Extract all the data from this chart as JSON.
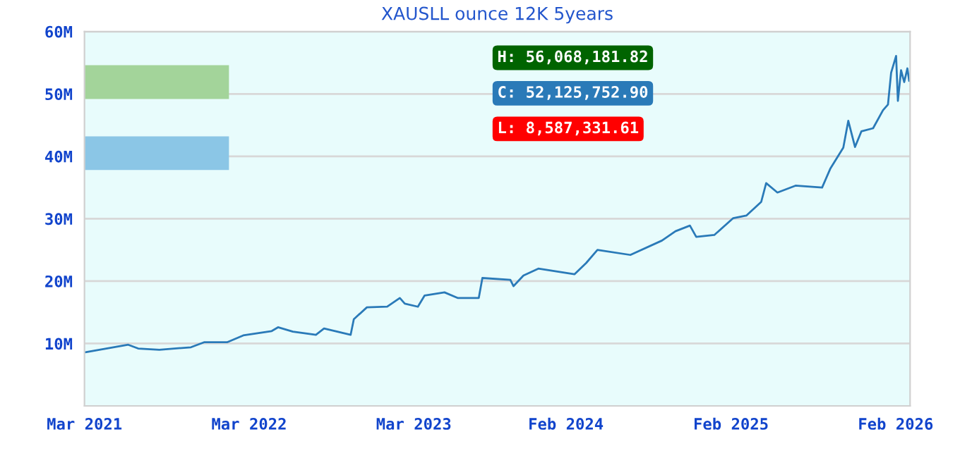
{
  "chart_data": {
    "type": "line",
    "title": "XAUSLL ounce 12K 5years",
    "annotations": [
      "H: 56,068,181.82",
      "C: 52,125,752.90",
      "L: 8,587,331.61"
    ],
    "grid": "y",
    "legend": false,
    "marker": "none",
    "line_style": "solid",
    "xlim": [
      "2021-03-01",
      "2026-03-05"
    ],
    "xticks": [
      {
        "value": "2021-03-01",
        "label": "Mar 2021"
      },
      {
        "value": "2022-03-01",
        "label": "Mar 2022"
      },
      {
        "value": "2023-03-01",
        "label": "Mar 2023"
      },
      {
        "value": "2024-02-01",
        "label": "Feb 2024"
      },
      {
        "value": "2025-02-01",
        "label": "Feb 2025"
      },
      {
        "value": "2026-02-01",
        "label": "Feb 2026"
      }
    ],
    "ylim": [
      0,
      60000000
    ],
    "yticks": [
      {
        "value": 10000000,
        "label": "10M"
      },
      {
        "value": 20000000,
        "label": "20M"
      },
      {
        "value": 30000000,
        "label": "30M"
      },
      {
        "value": 40000000,
        "label": "40M"
      },
      {
        "value": 50000000,
        "label": "50M"
      },
      {
        "value": 60000000,
        "label": "60M"
      }
    ],
    "series": [
      {
        "color": "#2a7ab8",
        "x": [
          "2021-03-03",
          "2021-06-06",
          "2021-06-28",
          "2021-08-14",
          "2021-10-23",
          "2021-11-21",
          "2022-01-11",
          "2022-02-16",
          "2022-04-20",
          "2022-05-04",
          "2022-06-06",
          "2022-07-27",
          "2022-08-14",
          "2022-10-12",
          "2022-10-19",
          "2022-11-17",
          "2023-01-01",
          "2023-01-29",
          "2023-02-09",
          "2023-03-10",
          "2023-03-25",
          "2023-05-08",
          "2023-06-06",
          "2023-07-23",
          "2023-07-31",
          "2023-10-01",
          "2023-10-08",
          "2023-10-30",
          "2023-12-02",
          "2024-02-20",
          "2024-03-17",
          "2024-04-11",
          "2024-06-23",
          "2024-09-01",
          "2024-10-01",
          "2024-11-02",
          "2024-11-16",
          "2024-12-26",
          "2025-02-06",
          "2025-03-07",
          "2025-04-09",
          "2025-04-20",
          "2025-05-15",
          "2025-06-24",
          "2025-08-22",
          "2025-09-09",
          "2025-10-08",
          "2025-10-19",
          "2025-11-03",
          "2025-11-17",
          "2025-12-13",
          "2026-01-04",
          "2026-01-15",
          "2026-01-22",
          "2026-02-02",
          "2026-02-06",
          "2026-02-13",
          "2026-02-20",
          "2026-02-27",
          "2026-03-03"
        ],
        "values": [
          8600000,
          9800000,
          9200000,
          9000000,
          9400000,
          10200000,
          10200000,
          11300000,
          12000000,
          12600000,
          11900000,
          11400000,
          12400000,
          11400000,
          13900000,
          15800000,
          15900000,
          17300000,
          16400000,
          15900000,
          17700000,
          18200000,
          17300000,
          17300000,
          20500000,
          20200000,
          19200000,
          20900000,
          22000000,
          21100000,
          22900000,
          25000000,
          24200000,
          26500000,
          28000000,
          28900000,
          27100000,
          27400000,
          30100000,
          30500000,
          32700000,
          35700000,
          34200000,
          35300000,
          35000000,
          38000000,
          41400000,
          45700000,
          41500000,
          44000000,
          44500000,
          47400000,
          48300000,
          53400000,
          56100000,
          48900000,
          53800000,
          51900000,
          54100000,
          52100000
        ]
      }
    ]
  }
}
